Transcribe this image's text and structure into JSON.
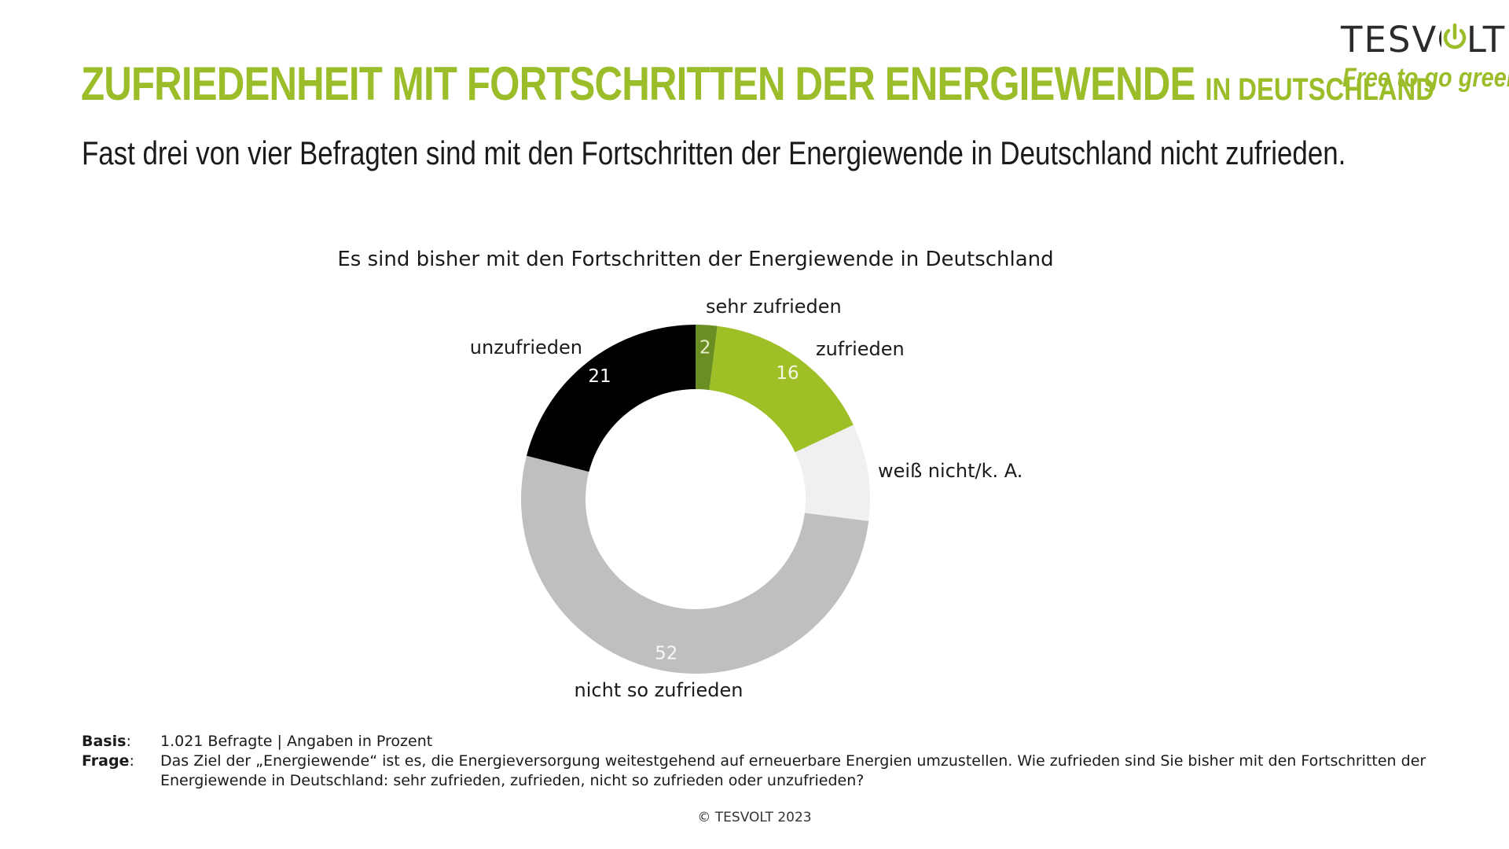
{
  "header": {
    "title": "ZUFRIEDENHEIT MIT FORTSCHRITTEN DER ENERGIEWENDE",
    "title_suffix": "IN DEUTSCHLAND",
    "subtitle": "Fast drei von vier Befragten sind mit den Fortschritten der Energiewende in Deutschland nicht zufrieden."
  },
  "logo": {
    "brand": "TESVOLT",
    "tagline": "Free to go green.",
    "accent_color": "#9bbd2a"
  },
  "chart_data": {
    "type": "pie",
    "donut": true,
    "title": "Es sind bisher mit den Fortschritten der Energiewende in Deutschland",
    "unit": "Prozent",
    "series": [
      {
        "label": "sehr zufrieden",
        "value": 2,
        "color": "#6b8e23",
        "value_label_color": "#e6efc8"
      },
      {
        "label": "zufrieden",
        "value": 16,
        "color": "#9fbf27",
        "value_label_color": "#f3f7e4"
      },
      {
        "label": "weiß nicht/k. A.",
        "value": 9,
        "color": "#f0f0f0",
        "value_label_color": ""
      },
      {
        "label": "nicht so zufrieden",
        "value": 52,
        "color": "#bfbfbf",
        "value_label_color": "#f7f7f7"
      },
      {
        "label": "unzufrieden",
        "value": 21,
        "color": "#000000",
        "value_label_color": "#ffffff"
      }
    ],
    "shown_value_labels": [
      "2",
      "16",
      "",
      "52",
      "21"
    ]
  },
  "notes": {
    "basis_label": "Basis",
    "basis_text": "1.021 Befragte | Angaben in Prozent",
    "frage_label": "Frage",
    "frage_text": "Das Ziel der „Energiewende“ ist es, die Energieversorgung weitestgehend auf erneuerbare Energien umzustellen. Wie zufrieden sind Sie bisher mit den Fortschritten der Energiewende in Deutschland: sehr zufrieden, zufrieden, nicht so zufrieden oder unzufrieden?"
  },
  "footer": {
    "copyright": "© TESVOLT 2023"
  }
}
